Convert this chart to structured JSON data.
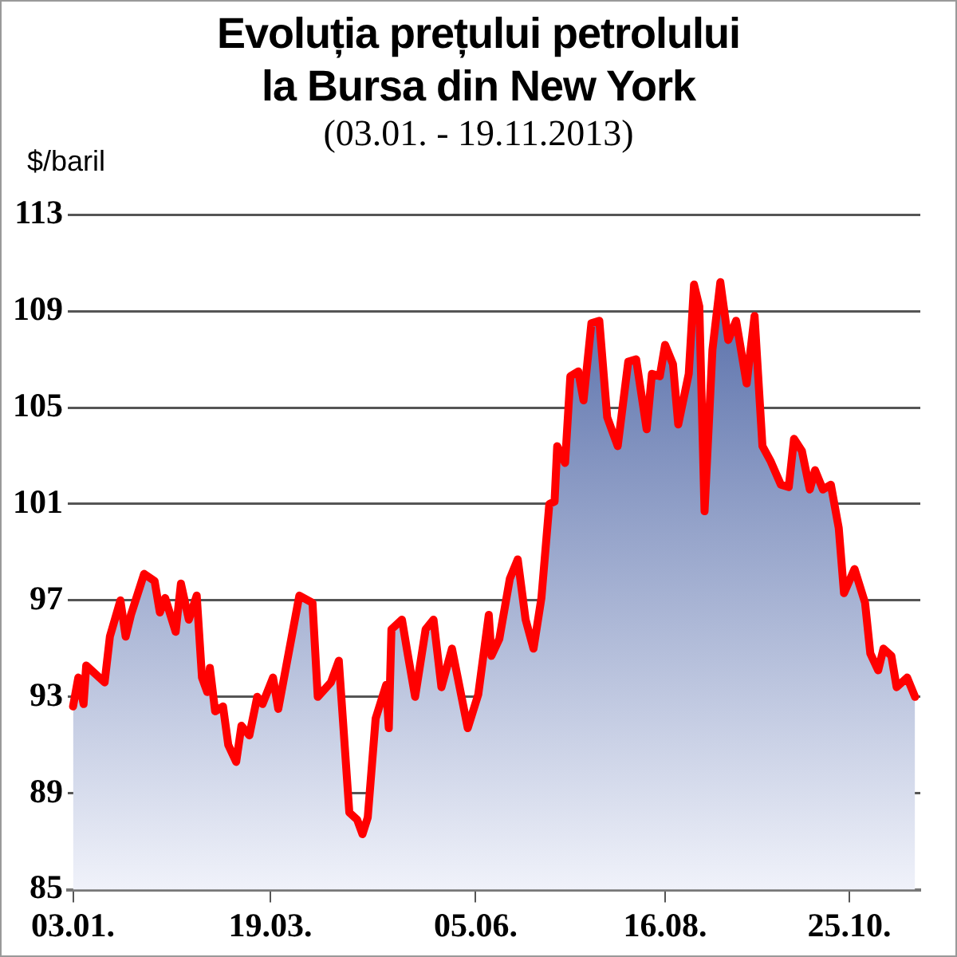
{
  "chart_data": {
    "type": "area",
    "title": "Evoluția prețului petrolului\nla Bursa din New York",
    "subtitle": "(03.01. - 19.11.2013)",
    "ylabel": "$/baril",
    "x": [
      "2013-01-03",
      "2013-01-05",
      "2013-01-07",
      "2013-01-08",
      "2013-01-15",
      "2013-01-17",
      "2013-01-21",
      "2013-01-23",
      "2013-01-25",
      "2013-01-30",
      "2013-02-03",
      "2013-02-05",
      "2013-02-07",
      "2013-02-11",
      "2013-02-13",
      "2013-02-16",
      "2013-02-19",
      "2013-02-21",
      "2013-02-23",
      "2013-02-24",
      "2013-02-26",
      "2013-03-01",
      "2013-03-03",
      "2013-03-06",
      "2013-03-08",
      "2013-03-11",
      "2013-03-14",
      "2013-03-16",
      "2013-03-20",
      "2013-03-22",
      "2013-03-30",
      "2013-04-04",
      "2013-04-06",
      "2013-04-11",
      "2013-04-14",
      "2013-04-18",
      "2013-04-21",
      "2013-04-23",
      "2013-04-25",
      "2013-04-28",
      "2013-05-02",
      "2013-05-03",
      "2013-05-04",
      "2013-05-08",
      "2013-05-10",
      "2013-05-13",
      "2013-05-17",
      "2013-05-20",
      "2013-05-23",
      "2013-05-27",
      "2013-06-02",
      "2013-06-06",
      "2013-06-10",
      "2013-06-11",
      "2013-06-14",
      "2013-06-18",
      "2013-06-21",
      "2013-06-24",
      "2013-06-27",
      "2013-06-30",
      "2013-07-03",
      "2013-07-05",
      "2013-07-06",
      "2013-07-09",
      "2013-07-11",
      "2013-07-14",
      "2013-07-16",
      "2013-07-19",
      "2013-07-22",
      "2013-07-25",
      "2013-07-29",
      "2013-08-02",
      "2013-08-05",
      "2013-08-09",
      "2013-08-11",
      "2013-08-14",
      "2013-08-16",
      "2013-08-19",
      "2013-08-21",
      "2013-08-25",
      "2013-08-27",
      "2013-08-29",
      "2013-08-31",
      "2013-09-03",
      "2013-09-06",
      "2013-09-09",
      "2013-09-12",
      "2013-09-16",
      "2013-09-19",
      "2013-09-22",
      "2013-09-25",
      "2013-09-29",
      "2013-10-02",
      "2013-10-04",
      "2013-10-07",
      "2013-10-10",
      "2013-10-12",
      "2013-10-15",
      "2013-10-18",
      "2013-10-21",
      "2013-10-23",
      "2013-10-27",
      "2013-10-31",
      "2013-11-02",
      "2013-11-05",
      "2013-11-07",
      "2013-11-10",
      "2013-11-12",
      "2013-11-16",
      "2013-11-19"
    ],
    "series": [
      {
        "color": "#ff0000",
        "values": [
          92.6,
          93.8,
          92.7,
          94.3,
          93.6,
          95.5,
          97.0,
          95.5,
          96.4,
          98.1,
          97.8,
          96.5,
          97.1,
          95.7,
          97.7,
          96.2,
          97.2,
          93.8,
          93.2,
          94.2,
          92.4,
          92.6,
          91.0,
          90.3,
          91.8,
          91.4,
          93.0,
          92.7,
          93.8,
          92.5,
          97.2,
          96.9,
          93.0,
          93.6,
          94.5,
          88.2,
          87.9,
          87.3,
          88.0,
          92.1,
          93.5,
          91.7,
          95.8,
          96.2,
          94.9,
          93.0,
          95.8,
          96.2,
          93.4,
          95.0,
          91.7,
          93.1,
          96.4,
          94.7,
          95.4,
          97.9,
          98.7,
          96.2,
          95.0,
          97.1,
          101.0,
          101.1,
          103.4,
          102.7,
          106.3,
          106.5,
          105.3,
          108.5,
          108.6,
          104.6,
          103.4,
          106.9,
          107.0,
          104.1,
          106.4,
          106.3,
          107.6,
          106.8,
          104.3,
          106.4,
          110.1,
          109.2,
          100.7,
          107.4,
          110.2,
          107.8,
          108.6,
          106.0,
          108.8,
          103.4,
          102.8,
          101.8,
          101.7,
          103.7,
          103.2,
          101.6,
          102.4,
          101.6,
          101.8,
          100.0,
          97.3,
          98.3,
          96.9,
          94.8,
          94.1,
          95.0,
          94.7,
          93.4,
          93.8,
          93.0
        ]
      }
    ],
    "xlim": [
      "2013-01-01",
      "2013-11-21"
    ],
    "xticks": [
      {
        "value": "2013-01-03",
        "label": "03.01."
      },
      {
        "value": "2013-03-19",
        "label": "19.03."
      },
      {
        "value": "2013-06-05",
        "label": "05.06."
      },
      {
        "value": "2013-08-16",
        "label": "16.08."
      },
      {
        "value": "2013-10-25",
        "label": "25.10."
      }
    ],
    "ylim": [
      85,
      113
    ],
    "yticks": [
      85,
      89,
      93,
      97,
      101,
      105,
      109,
      113
    ],
    "grid": "y"
  }
}
